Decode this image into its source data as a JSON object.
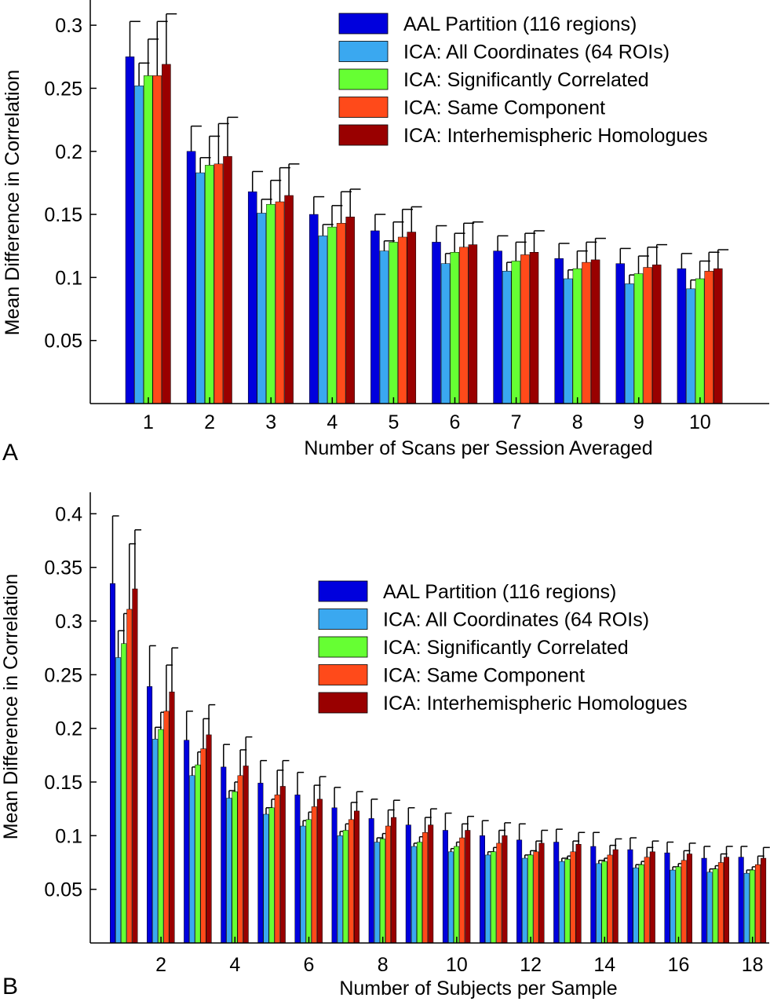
{
  "colors": {
    "series": [
      "#0000dd",
      "#3aa8f0",
      "#66ff33",
      "#ff4a1a",
      "#990000"
    ],
    "axis": "#000000",
    "error_bar": "#000000"
  },
  "panels": [
    {
      "panel_label": "A",
      "legend_placement": "top-right"
    },
    {
      "panel_label": "B",
      "legend_placement": "right"
    }
  ],
  "chart_data": [
    {
      "type": "bar",
      "panel": "A",
      "xlabel": "Number of Scans per Session Averaged",
      "ylabel": "Mean Difference in Correlation",
      "ylim": [
        0,
        0.32
      ],
      "yticks": [
        0.05,
        0.1,
        0.15,
        0.2,
        0.25,
        0.3
      ],
      "ytick_labels": [
        "0.05",
        "0.1",
        "0.15",
        "0.2",
        "0.25",
        "0.3"
      ],
      "categories": [
        "1",
        "2",
        "3",
        "4",
        "5",
        "6",
        "7",
        "8",
        "9",
        "10"
      ],
      "xtick_labels": [
        "1",
        "2",
        "3",
        "4",
        "5",
        "6",
        "7",
        "8",
        "9",
        "10"
      ],
      "grid": false,
      "series": [
        {
          "name": "AAL Partition (116 regions)",
          "values": [
            0.275,
            0.2,
            0.168,
            0.15,
            0.137,
            0.128,
            0.121,
            0.115,
            0.111,
            0.107
          ],
          "errors": [
            0.028,
            0.02,
            0.016,
            0.014,
            0.013,
            0.013,
            0.012,
            0.012,
            0.012,
            0.012
          ]
        },
        {
          "name": "ICA: All Coordinates (64 ROIs)",
          "values": [
            0.252,
            0.183,
            0.151,
            0.133,
            0.121,
            0.111,
            0.105,
            0.099,
            0.095,
            0.091
          ],
          "errors": [
            0.018,
            0.012,
            0.011,
            0.009,
            0.008,
            0.008,
            0.007,
            0.007,
            0.007,
            0.007
          ]
        },
        {
          "name": "ICA: Significantly Correlated",
          "values": [
            0.26,
            0.189,
            0.158,
            0.14,
            0.128,
            0.12,
            0.113,
            0.107,
            0.103,
            0.099
          ],
          "errors": [
            0.029,
            0.023,
            0.019,
            0.017,
            0.016,
            0.015,
            0.015,
            0.014,
            0.014,
            0.014
          ]
        },
        {
          "name": "ICA: Same Component",
          "values": [
            0.26,
            0.19,
            0.16,
            0.143,
            0.132,
            0.124,
            0.118,
            0.112,
            0.108,
            0.105
          ],
          "errors": [
            0.043,
            0.032,
            0.027,
            0.025,
            0.022,
            0.019,
            0.017,
            0.016,
            0.016,
            0.015
          ]
        },
        {
          "name": "ICA: Interhemispheric Homologues",
          "values": [
            0.269,
            0.196,
            0.165,
            0.148,
            0.136,
            0.126,
            0.12,
            0.114,
            0.11,
            0.107
          ],
          "errors": [
            0.04,
            0.031,
            0.025,
            0.022,
            0.02,
            0.018,
            0.017,
            0.017,
            0.016,
            0.015
          ]
        }
      ]
    },
    {
      "type": "bar",
      "panel": "B",
      "xlabel": "Number of Subjects per Sample",
      "ylabel": "Mean Difference in Correlation",
      "ylim": [
        0,
        0.42
      ],
      "yticks": [
        0.05,
        0.1,
        0.15,
        0.2,
        0.25,
        0.3,
        0.35,
        0.4
      ],
      "ytick_labels": [
        "0.05",
        "0.1",
        "0.15",
        "0.2",
        "0.25",
        "0.3",
        "0.35",
        "0.4"
      ],
      "categories": [
        "1",
        "2",
        "3",
        "4",
        "5",
        "6",
        "7",
        "8",
        "9",
        "10",
        "11",
        "12",
        "13",
        "14",
        "15",
        "16",
        "17",
        "18"
      ],
      "xtick_labels": [
        "2",
        "4",
        "6",
        "8",
        "10",
        "12",
        "14",
        "16",
        "18"
      ],
      "xtick_values": [
        "2",
        "4",
        "6",
        "8",
        "10",
        "12",
        "14",
        "16",
        "18"
      ],
      "grid": false,
      "series": [
        {
          "name": "AAL Partition (116 regions)",
          "values": [
            0.335,
            0.239,
            0.189,
            0.164,
            0.149,
            0.138,
            0.126,
            0.116,
            0.11,
            0.105,
            0.1,
            0.096,
            0.094,
            0.09,
            0.087,
            0.084,
            0.079,
            0.08
          ],
          "errors": [
            0.063,
            0.038,
            0.027,
            0.021,
            0.021,
            0.021,
            0.019,
            0.018,
            0.016,
            0.016,
            0.014,
            0.015,
            0.012,
            0.013,
            0.011,
            0.01,
            0.011,
            0.01
          ]
        },
        {
          "name": "ICA: All Coordinates (64 ROIs)",
          "values": [
            0.266,
            0.19,
            0.156,
            0.135,
            0.12,
            0.109,
            0.1,
            0.094,
            0.09,
            0.085,
            0.082,
            0.079,
            0.076,
            0.074,
            0.07,
            0.068,
            0.066,
            0.065
          ],
          "errors": [
            0.025,
            0.011,
            0.008,
            0.007,
            0.006,
            0.005,
            0.004,
            0.004,
            0.003,
            0.003,
            0.003,
            0.003,
            0.003,
            0.003,
            0.003,
            0.003,
            0.003,
            0.003
          ]
        },
        {
          "name": "ICA: Significantly Correlated",
          "values": [
            0.279,
            0.199,
            0.166,
            0.141,
            0.126,
            0.115,
            0.105,
            0.097,
            0.094,
            0.09,
            0.085,
            0.082,
            0.078,
            0.076,
            0.073,
            0.071,
            0.069,
            0.068
          ],
          "errors": [
            0.028,
            0.016,
            0.012,
            0.009,
            0.008,
            0.007,
            0.006,
            0.005,
            0.005,
            0.004,
            0.004,
            0.004,
            0.003,
            0.003,
            0.003,
            0.003,
            0.003,
            0.003
          ]
        },
        {
          "name": "ICA: Same Component",
          "values": [
            0.311,
            0.216,
            0.181,
            0.156,
            0.138,
            0.127,
            0.115,
            0.109,
            0.103,
            0.098,
            0.093,
            0.085,
            0.085,
            0.082,
            0.08,
            0.077,
            0.075,
            0.073
          ],
          "errors": [
            0.061,
            0.043,
            0.028,
            0.024,
            0.023,
            0.02,
            0.016,
            0.015,
            0.014,
            0.013,
            0.012,
            0.01,
            0.01,
            0.009,
            0.009,
            0.009,
            0.008,
            0.008
          ]
        },
        {
          "name": "ICA: Interhemispheric Homologues",
          "values": [
            0.33,
            0.234,
            0.194,
            0.165,
            0.146,
            0.134,
            0.123,
            0.117,
            0.11,
            0.105,
            0.1,
            0.093,
            0.092,
            0.087,
            0.085,
            0.083,
            0.08,
            0.079
          ],
          "errors": [
            0.055,
            0.041,
            0.028,
            0.027,
            0.024,
            0.021,
            0.018,
            0.016,
            0.015,
            0.013,
            0.012,
            0.012,
            0.011,
            0.01,
            0.01,
            0.01,
            0.01,
            0.01
          ]
        }
      ]
    }
  ]
}
